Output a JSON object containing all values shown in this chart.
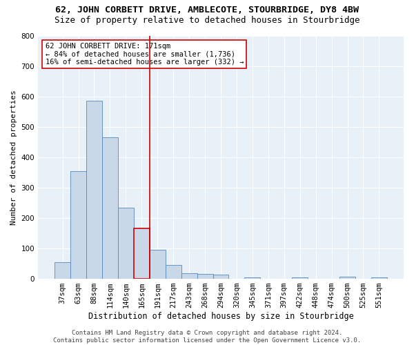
{
  "title": "62, JOHN CORBETT DRIVE, AMBLECOTE, STOURBRIDGE, DY8 4BW",
  "subtitle": "Size of property relative to detached houses in Stourbridge",
  "xlabel": "Distribution of detached houses by size in Stourbridge",
  "ylabel": "Number of detached properties",
  "categories": [
    "37sqm",
    "63sqm",
    "88sqm",
    "114sqm",
    "140sqm",
    "165sqm",
    "191sqm",
    "217sqm",
    "243sqm",
    "268sqm",
    "294sqm",
    "320sqm",
    "345sqm",
    "371sqm",
    "397sqm",
    "422sqm",
    "448sqm",
    "474sqm",
    "500sqm",
    "525sqm",
    "551sqm"
  ],
  "values": [
    55,
    355,
    585,
    465,
    235,
    165,
    95,
    45,
    18,
    17,
    13,
    0,
    5,
    0,
    0,
    5,
    0,
    0,
    8,
    0,
    5
  ],
  "bar_color": "#c8d8e8",
  "bar_edge_color": "#5588bb",
  "highlight_bar_index": 5,
  "vline_color": "#cc0000",
  "vline_x": 5.5,
  "annotation_text": "62 JOHN CORBETT DRIVE: 171sqm\n← 84% of detached houses are smaller (1,736)\n16% of semi-detached houses are larger (332) →",
  "annotation_box_color": "white",
  "annotation_box_edge_color": "#cc0000",
  "ylim": [
    0,
    800
  ],
  "yticks": [
    0,
    100,
    200,
    300,
    400,
    500,
    600,
    700,
    800
  ],
  "bg_color": "#e8f0f8",
  "footer_text": "Contains HM Land Registry data © Crown copyright and database right 2024.\nContains public sector information licensed under the Open Government Licence v3.0.",
  "title_fontsize": 9.5,
  "subtitle_fontsize": 9,
  "xlabel_fontsize": 8.5,
  "ylabel_fontsize": 8,
  "tick_fontsize": 7.5,
  "annotation_fontsize": 7.5,
  "footer_fontsize": 6.5
}
